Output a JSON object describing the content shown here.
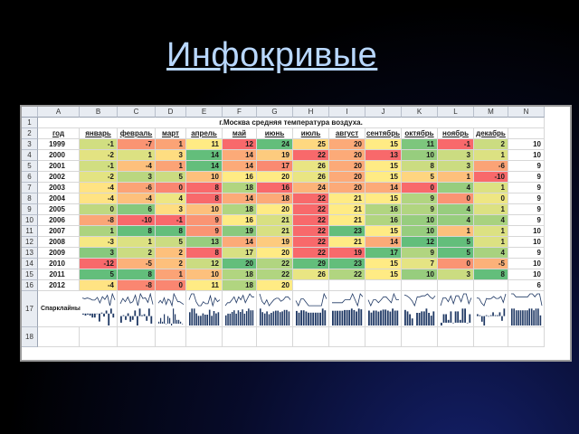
{
  "slide": {
    "title": "Инфокривые "
  },
  "sheet": {
    "columns": [
      "A",
      "B",
      "C",
      "D",
      "E",
      "F",
      "G",
      "H",
      "I",
      "J",
      "K",
      "L",
      "M",
      "N"
    ],
    "rows": [
      "1",
      "2",
      "3",
      "4",
      "5",
      "6",
      "7",
      "8",
      "9",
      "10",
      "11",
      "12",
      "13",
      "14",
      "15",
      "16",
      "17",
      "18"
    ],
    "table_title": "г.Москва средняя температура воздуха.",
    "headers": [
      "год",
      "январь",
      "февраль",
      "март",
      "апрель",
      "май",
      "июнь",
      "июль",
      "август",
      "сентябрь",
      "октябрь",
      "ноябрь",
      "декабрь",
      ""
    ],
    "data": [
      [
        "1999",
        "-1",
        "-7",
        "1",
        "11",
        "12",
        "24",
        "25",
        "20",
        "15",
        "11",
        "-1",
        "2",
        "10"
      ],
      [
        "2000",
        "-2",
        "1",
        "3",
        "14",
        "14",
        "19",
        "22",
        "20",
        "13",
        "10",
        "3",
        "1",
        "10"
      ],
      [
        "2001",
        "-1",
        "-4",
        "1",
        "14",
        "14",
        "17",
        "26",
        "20",
        "15",
        "8",
        "3",
        "-6",
        "9"
      ],
      [
        "2002",
        "-2",
        "3",
        "5",
        "10",
        "16",
        "20",
        "26",
        "20",
        "15",
        "5",
        "1",
        "-10",
        "9"
      ],
      [
        "2003",
        "-4",
        "-6",
        "0",
        "8",
        "18",
        "16",
        "24",
        "20",
        "14",
        "0",
        "4",
        "1",
        "9"
      ],
      [
        "2004",
        "-4",
        "-4",
        "4",
        "8",
        "14",
        "18",
        "22",
        "21",
        "15",
        "9",
        "0",
        "0",
        "9"
      ],
      [
        "2005",
        "0",
        "6",
        "3",
        "10",
        "18",
        "20",
        "22",
        "21",
        "16",
        "9",
        "4",
        "1",
        "9"
      ],
      [
        "2006",
        "-8",
        "-10",
        "-1",
        "9",
        "16",
        "21",
        "22",
        "21",
        "16",
        "10",
        "4",
        "4",
        "9"
      ],
      [
        "2007",
        "1",
        "8",
        "8",
        "9",
        "19",
        "21",
        "22",
        "23",
        "15",
        "10",
        "1",
        "1",
        "10"
      ],
      [
        "2008",
        "-3",
        "1",
        "5",
        "13",
        "14",
        "19",
        "22",
        "21",
        "14",
        "12",
        "5",
        "1",
        "10"
      ],
      [
        "2009",
        "3",
        "2",
        "2",
        "8",
        "17",
        "20",
        "22",
        "19",
        "17",
        "9",
        "5",
        "4",
        "9"
      ],
      [
        "2010",
        "-12",
        "-5",
        "2",
        "12",
        "20",
        "22",
        "29",
        "23",
        "15",
        "7",
        "0",
        "-5",
        "10"
      ],
      [
        "2011",
        "5",
        "8",
        "1",
        "10",
        "18",
        "22",
        "26",
        "22",
        "15",
        "10",
        "3",
        "8",
        "10"
      ],
      [
        "2012",
        "-4",
        "-8",
        "0",
        "11",
        "18",
        "20",
        "",
        "",
        "",
        "",
        "",
        "",
        "6"
      ]
    ],
    "sparkline_label": "Спарклайны",
    "colors": {
      "cold": "#f8696b",
      "mid": "#ffeb84",
      "warm": "#63be7b",
      "spark": "#1f3864",
      "header": "#e8ecf2"
    }
  }
}
